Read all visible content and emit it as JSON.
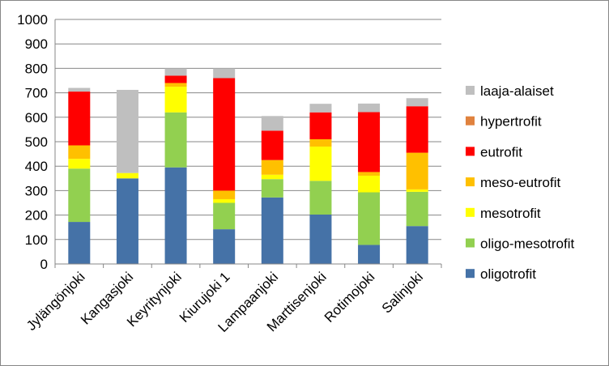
{
  "chart_data": {
    "type": "bar",
    "stacked": true,
    "title": "",
    "xlabel": "",
    "ylabel": "",
    "ylim": [
      0,
      1000
    ],
    "yticks": [
      0,
      100,
      200,
      300,
      400,
      500,
      600,
      700,
      800,
      900,
      1000
    ],
    "grid": true,
    "legend_position": "right",
    "categories": [
      "Jylängönjoki",
      "Kangasjoki",
      "Keyritynjoki",
      "Kiurujoki 1",
      "Lampaanjoki",
      "Marttisenjoki",
      "Rotimojoki",
      "Salinjoki"
    ],
    "series": [
      {
        "name": "oligotrofit",
        "color": "#4572A7",
        "values": [
          172,
          350,
          395,
          142,
          272,
          202,
          78,
          155
        ]
      },
      {
        "name": "oligo-mesotrofit",
        "color": "#92D050",
        "values": [
          218,
          0,
          225,
          108,
          75,
          138,
          215,
          140
        ]
      },
      {
        "name": "mesotrofit",
        "color": "#FFFF00",
        "values": [
          40,
          22,
          105,
          15,
          18,
          140,
          68,
          10
        ]
      },
      {
        "name": "meso-eutrofit",
        "color": "#FFC000",
        "values": [
          55,
          0,
          15,
          35,
          60,
          30,
          15,
          150
        ]
      },
      {
        "name": "eutrofit",
        "color": "#FF0000",
        "values": [
          220,
          0,
          30,
          460,
          120,
          110,
          245,
          190
        ]
      },
      {
        "name": "hypertrofit",
        "color": "#E0823E",
        "values": [
          0,
          0,
          0,
          0,
          0,
          0,
          0,
          0
        ]
      },
      {
        "name": "laaja-alaiset",
        "color": "#BFBFBF",
        "values": [
          15,
          340,
          30,
          40,
          60,
          35,
          35,
          33
        ]
      }
    ]
  }
}
